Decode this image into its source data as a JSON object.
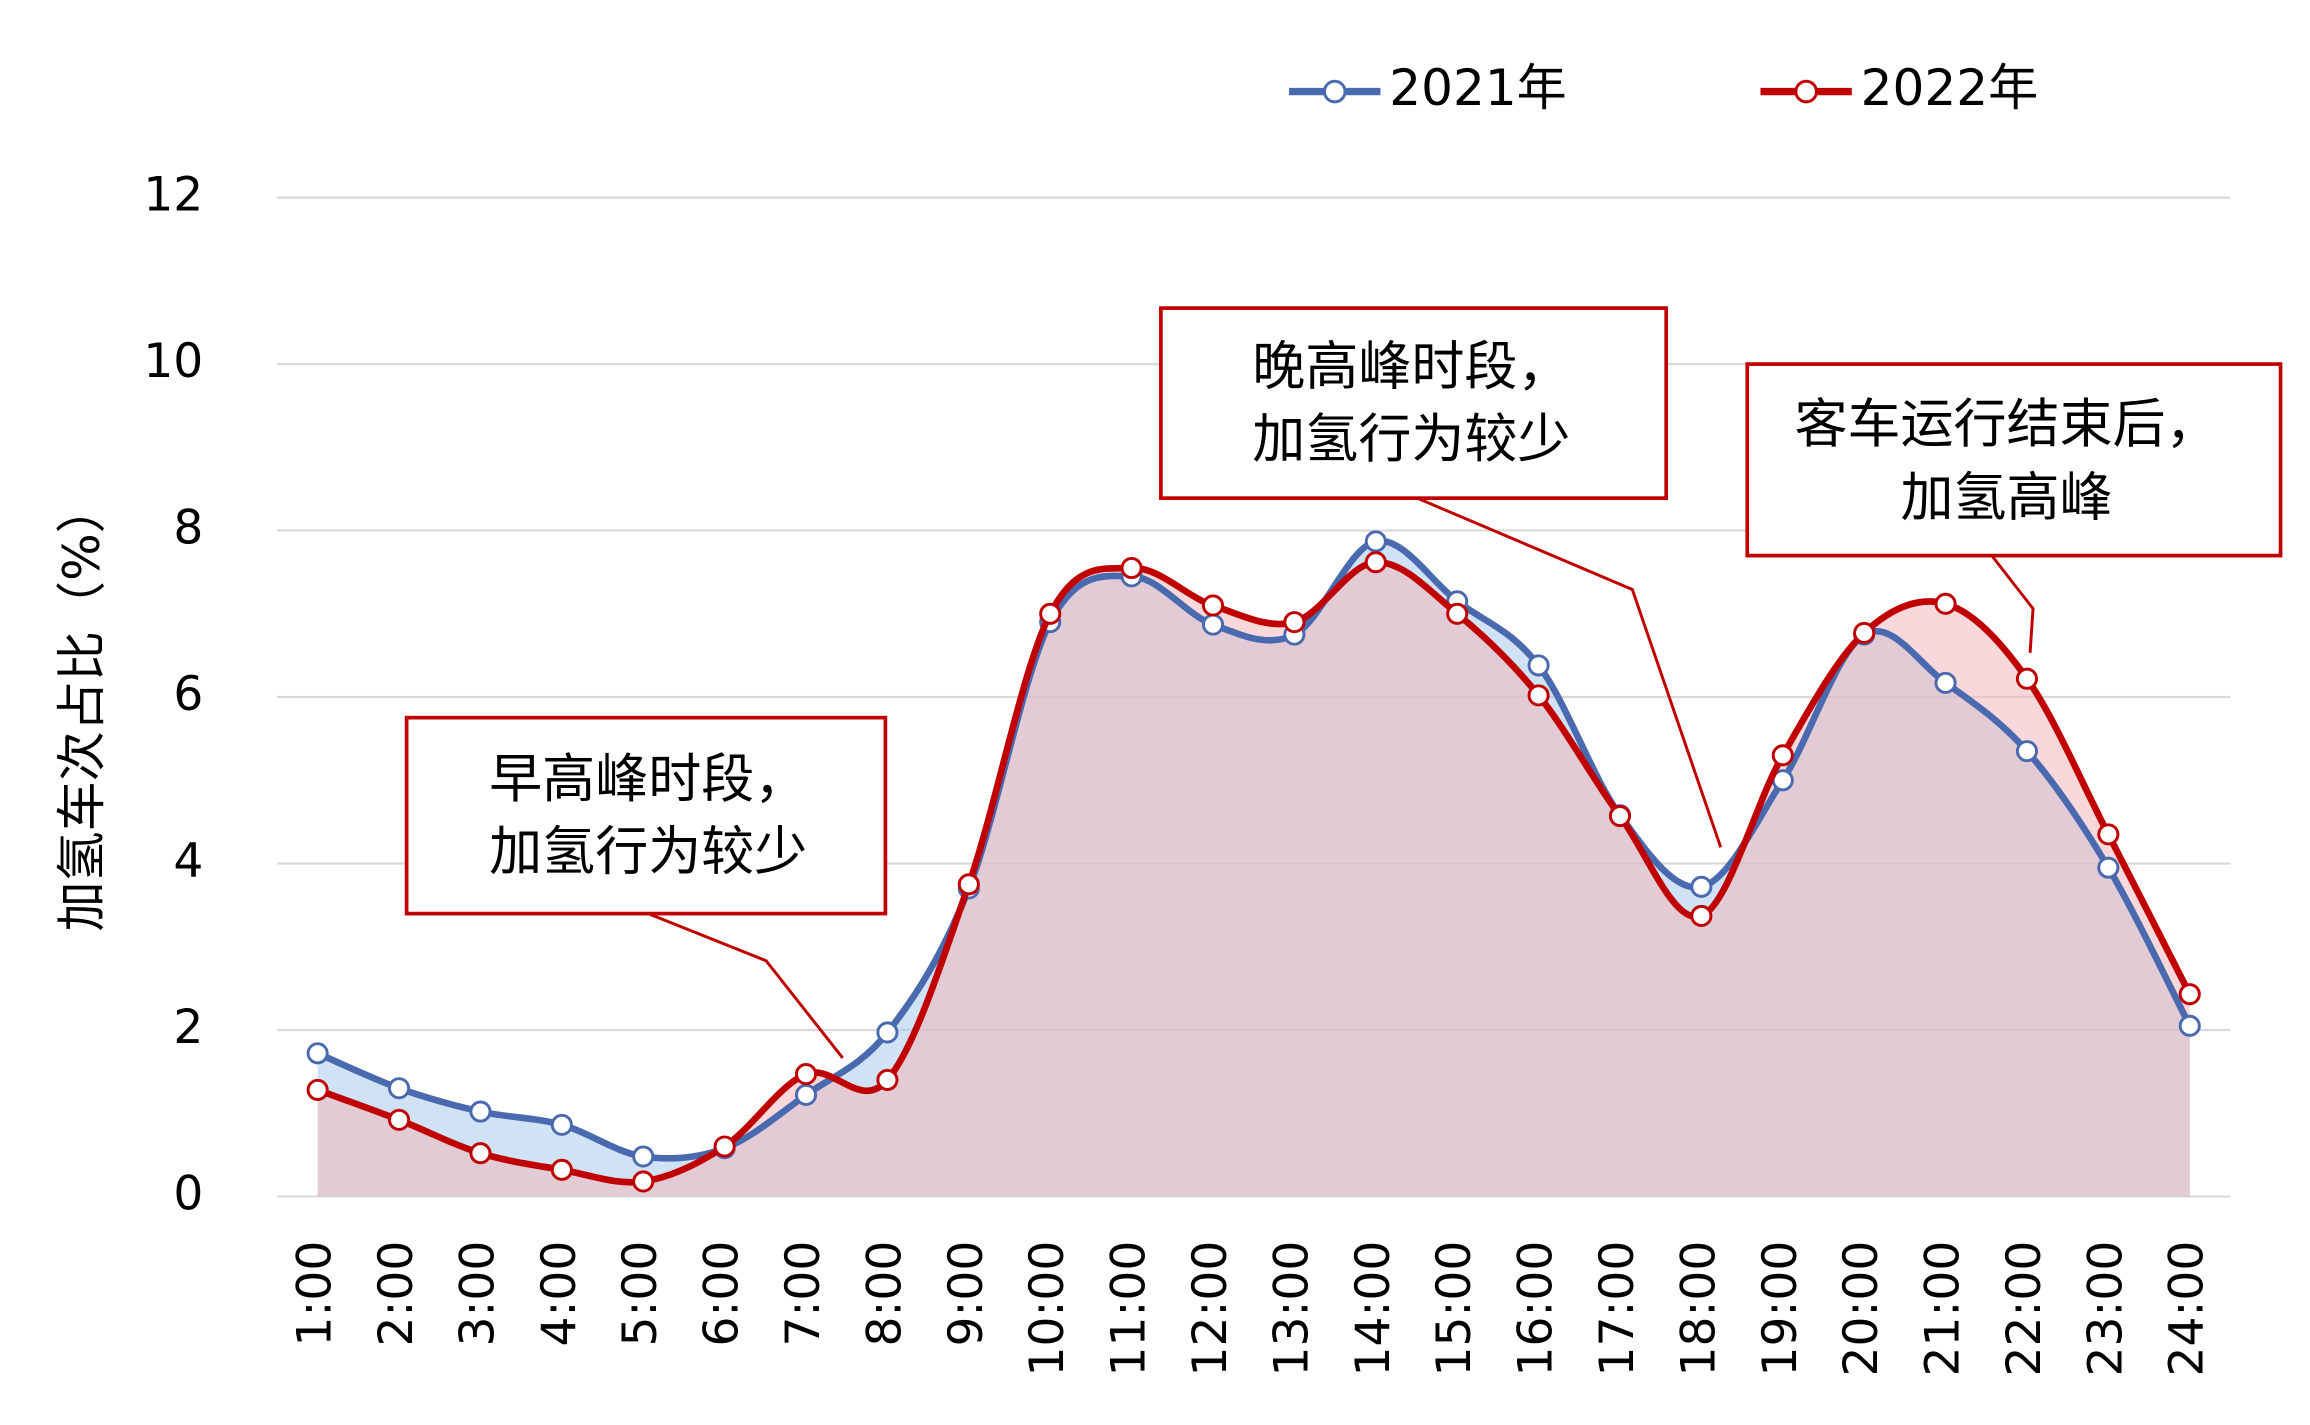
{
  "chart_data": {
    "type": "line",
    "y_label": "加氢车次占比（%）",
    "categories": [
      "1:00",
      "2:00",
      "3:00",
      "4:00",
      "5:00",
      "6:00",
      "7:00",
      "8:00",
      "9:00",
      "10:00",
      "11:00",
      "12:00",
      "13:00",
      "14:00",
      "15:00",
      "16:00",
      "17:00",
      "18:00",
      "19:00",
      "20:00",
      "21:00",
      "22:00",
      "23:00",
      "24:00"
    ],
    "series": [
      {
        "name": "2021年",
        "color": "#4a6ab0",
        "fill": "#a9cbee",
        "values": [
          1.72,
          1.3,
          1.02,
          0.86,
          0.48,
          0.58,
          1.22,
          1.97,
          3.7,
          6.9,
          7.45,
          6.87,
          6.75,
          7.87,
          7.15,
          6.38,
          4.58,
          3.72,
          5.0,
          6.75,
          6.17,
          5.35,
          3.95,
          2.05
        ]
      },
      {
        "name": "2022年",
        "color": "#c00000",
        "fill": "#f2b8bc",
        "values": [
          1.28,
          0.92,
          0.52,
          0.32,
          0.18,
          0.6,
          1.47,
          1.4,
          3.75,
          7.0,
          7.55,
          7.1,
          6.9,
          7.62,
          7.0,
          6.02,
          4.57,
          3.37,
          5.3,
          6.77,
          7.12,
          6.22,
          4.35,
          2.43
        ]
      }
    ],
    "ylim": [
      0,
      12
    ],
    "yticks": [
      0,
      2,
      4,
      6,
      8,
      10,
      12
    ],
    "grid": true,
    "legend": "top",
    "annotations": [
      {
        "lines": [
          "早高峰时段，",
          "加氢行为较少"
        ]
      },
      {
        "lines": [
          "晚高峰时段，",
          "加氢行为较少"
        ]
      },
      {
        "lines": [
          "客车运行结束后，",
          "加氢高峰"
        ]
      }
    ]
  }
}
